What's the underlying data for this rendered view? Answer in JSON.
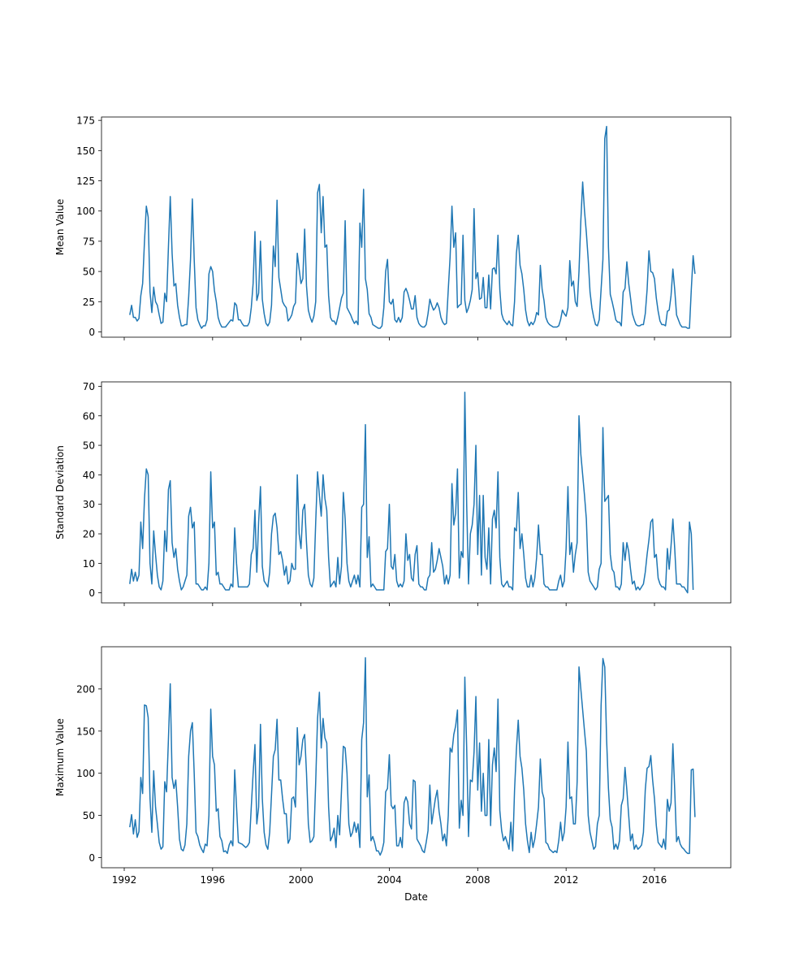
{
  "chart_data": [
    {
      "type": "line",
      "ylabel": "Mean Value",
      "xlabel": "",
      "ylim": [
        -4.4,
        177.8
      ],
      "yticks": [
        0,
        25,
        50,
        75,
        100,
        125,
        150,
        175
      ],
      "color": "#1f77b4",
      "x_range": [
        "1992-04",
        "2018-03"
      ],
      "values": [
        14,
        22,
        12,
        12,
        9,
        11,
        30,
        40,
        75,
        104,
        95,
        33,
        16,
        37,
        25,
        22,
        14,
        7,
        8,
        32,
        25,
        70,
        112,
        65,
        38,
        40,
        22,
        12,
        5,
        5,
        6,
        6,
        29,
        60,
        110,
        60,
        20,
        10,
        6,
        3,
        5,
        5,
        10,
        48,
        54,
        50,
        34,
        25,
        12,
        7,
        4,
        4,
        4,
        6,
        8,
        10,
        9,
        24,
        22,
        10,
        10,
        7,
        5,
        5,
        5,
        8,
        20,
        40,
        83,
        26,
        32,
        75,
        27,
        15,
        7,
        5,
        8,
        22,
        71,
        54,
        109,
        45,
        35,
        25,
        22,
        20,
        9,
        11,
        14,
        21,
        24,
        65,
        52,
        40,
        44,
        85,
        38,
        18,
        12,
        8,
        13,
        25,
        115,
        122,
        82,
        112,
        70,
        72,
        30,
        12,
        9,
        9,
        6,
        12,
        20,
        28,
        32,
        92,
        20,
        17,
        14,
        10,
        7,
        9,
        6,
        90,
        70,
        118,
        44,
        35,
        15,
        12,
        6,
        5,
        4,
        3,
        3,
        5,
        20,
        50,
        60,
        25,
        23,
        27,
        10,
        8,
        12,
        8,
        12,
        33,
        36,
        32,
        26,
        19,
        19,
        30,
        12,
        7,
        5,
        4,
        4,
        6,
        15,
        27,
        22,
        18,
        20,
        24,
        20,
        12,
        8,
        6,
        7,
        35,
        62,
        104,
        70,
        82,
        20,
        22,
        23,
        80,
        26,
        16,
        20,
        26,
        35,
        102,
        44,
        49,
        27,
        28,
        45,
        20,
        20,
        47,
        19,
        52,
        53,
        48,
        80,
        35,
        15,
        10,
        8,
        6,
        9,
        6,
        5,
        25,
        65,
        80,
        55,
        48,
        35,
        18,
        9,
        5,
        8,
        6,
        9,
        16,
        14,
        55,
        35,
        26,
        12,
        8,
        6,
        5,
        4,
        4,
        4,
        5,
        10,
        18,
        15,
        13,
        20,
        59,
        38,
        42,
        25,
        21,
        50,
        92,
        124,
        100,
        82,
        60,
        33,
        20,
        12,
        6,
        5,
        10,
        35,
        60,
        160,
        170,
        70,
        31,
        25,
        18,
        10,
        8,
        8,
        5,
        33,
        36,
        58,
        40,
        28,
        15,
        10,
        6,
        5,
        5,
        6,
        6,
        15,
        35,
        67,
        50,
        49,
        44,
        28,
        17,
        9,
        6,
        6,
        5,
        17,
        18,
        30,
        52,
        35,
        14,
        10,
        6,
        4,
        4,
        4,
        3,
        3,
        35,
        63,
        48
      ]
    },
    {
      "type": "line",
      "ylabel": "Standard Deviation",
      "xlabel": "",
      "ylim": [
        -3.4,
        71.5
      ],
      "yticks": [
        0,
        10,
        20,
        30,
        40,
        50,
        60,
        70
      ],
      "color": "#1f77b4",
      "x_range": [
        "1992-04",
        "2018-03"
      ],
      "values": [
        3,
        8,
        4,
        7,
        4,
        6,
        24,
        15,
        32,
        42,
        40,
        10,
        3,
        21,
        13,
        6,
        2,
        1,
        4,
        21,
        14,
        35,
        38,
        17,
        12,
        15,
        8,
        4,
        1,
        2,
        4,
        6,
        26,
        29,
        22,
        24,
        3,
        3,
        2,
        1,
        1,
        2,
        1,
        10,
        41,
        22,
        24,
        6,
        7,
        3,
        3,
        2,
        1,
        1,
        1,
        3,
        2,
        22,
        10,
        2,
        2,
        2,
        2,
        2,
        2,
        3,
        13,
        15,
        28,
        7,
        24,
        36,
        9,
        4,
        3,
        2,
        7,
        20,
        26,
        27,
        22,
        13,
        14,
        11,
        6,
        9,
        3,
        4,
        10,
        8,
        8,
        40,
        20,
        15,
        28,
        30,
        17,
        6,
        3,
        2,
        5,
        24,
        41,
        33,
        26,
        40,
        32,
        28,
        12,
        2,
        3,
        4,
        2,
        12,
        3,
        9,
        34,
        25,
        10,
        4,
        2,
        4,
        6,
        3,
        6,
        2,
        29,
        30,
        57,
        12,
        19,
        2,
        3,
        2,
        1,
        1,
        1,
        1,
        1,
        14,
        15,
        30,
        9,
        8,
        13,
        4,
        2,
        3,
        2,
        4,
        20,
        11,
        13,
        5,
        4,
        13,
        16,
        3,
        2,
        2,
        1,
        1,
        5,
        6,
        17,
        7,
        8,
        11,
        15,
        12,
        9,
        3,
        6,
        3,
        6,
        37,
        23,
        27,
        42,
        5,
        14,
        12,
        68,
        30,
        3,
        20,
        23,
        30,
        50,
        13,
        33,
        6,
        33,
        12,
        8,
        22,
        3,
        25,
        28,
        22,
        41,
        12,
        3,
        2,
        3,
        4,
        2,
        2,
        1,
        22,
        21,
        34,
        15,
        20,
        13,
        5,
        2,
        2,
        6,
        2,
        5,
        12,
        23,
        13,
        13,
        3,
        2,
        2,
        1,
        1,
        1,
        1,
        1,
        4,
        6,
        2,
        4,
        15,
        36,
        13,
        17,
        7,
        13,
        17,
        60,
        47,
        40,
        33,
        25,
        7,
        4,
        3,
        2,
        1,
        2,
        8,
        10,
        56,
        31,
        32,
        33,
        13,
        8,
        7,
        2,
        2,
        1,
        3,
        17,
        11,
        17,
        14,
        8,
        3,
        4,
        1,
        2,
        1,
        2,
        3,
        7,
        13,
        18,
        24,
        25,
        12,
        13,
        5,
        3,
        2,
        2,
        1,
        15,
        8,
        16,
        25,
        15,
        3,
        3,
        3,
        2,
        2,
        1,
        0,
        24,
        20,
        1
      ]
    },
    {
      "type": "line",
      "ylabel": "Maximum Value",
      "xlabel": "Date",
      "ylim": [
        -12,
        250
      ],
      "yticks": [
        0,
        50,
        100,
        150,
        200
      ],
      "xticks": [
        "1992",
        "1996",
        "2000",
        "2004",
        "2008",
        "2012",
        "2016"
      ],
      "color": "#1f77b4",
      "x_range": [
        "1992-04",
        "2018-03"
      ],
      "values": [
        36,
        51,
        28,
        45,
        24,
        31,
        95,
        76,
        181,
        180,
        166,
        70,
        30,
        103,
        60,
        40,
        18,
        10,
        13,
        90,
        78,
        140,
        206,
        95,
        82,
        92,
        60,
        22,
        10,
        8,
        15,
        40,
        120,
        150,
        160,
        100,
        30,
        25,
        15,
        10,
        6,
        16,
        14,
        50,
        176,
        120,
        110,
        55,
        58,
        25,
        20,
        7,
        8,
        5,
        15,
        20,
        14,
        104,
        60,
        18,
        17,
        16,
        14,
        12,
        14,
        18,
        60,
        100,
        134,
        40,
        60,
        158,
        70,
        30,
        15,
        10,
        30,
        75,
        120,
        128,
        164,
        92,
        92,
        70,
        52,
        52,
        17,
        22,
        70,
        72,
        60,
        154,
        110,
        120,
        140,
        146,
        100,
        40,
        18,
        20,
        25,
        90,
        165,
        196,
        130,
        165,
        142,
        136,
        60,
        20,
        25,
        35,
        12,
        50,
        27,
        80,
        132,
        130,
        100,
        40,
        25,
        30,
        42,
        30,
        40,
        12,
        140,
        160,
        237,
        72,
        98,
        20,
        25,
        18,
        8,
        8,
        3,
        8,
        18,
        78,
        82,
        122,
        62,
        58,
        62,
        14,
        14,
        24,
        12,
        65,
        72,
        66,
        40,
        34,
        92,
        90,
        22,
        18,
        14,
        8,
        6,
        18,
        32,
        86,
        40,
        55,
        70,
        80,
        55,
        40,
        20,
        28,
        14,
        50,
        130,
        125,
        146,
        156,
        175,
        35,
        68,
        50,
        214,
        130,
        25,
        92,
        90,
        125,
        191,
        80,
        136,
        55,
        100,
        50,
        50,
        140,
        38,
        110,
        130,
        102,
        188,
        56,
        32,
        20,
        25,
        18,
        10,
        42,
        8,
        80,
        128,
        163,
        120,
        106,
        80,
        40,
        20,
        6,
        30,
        12,
        22,
        40,
        60,
        117,
        78,
        70,
        18,
        16,
        10,
        8,
        6,
        8,
        6,
        20,
        42,
        20,
        30,
        60,
        137,
        70,
        72,
        40,
        40,
        90,
        226,
        200,
        175,
        150,
        126,
        50,
        30,
        20,
        10,
        13,
        40,
        50,
        180,
        236,
        226,
        140,
        82,
        45,
        36,
        10,
        16,
        10,
        20,
        62,
        70,
        107,
        80,
        50,
        20,
        28,
        10,
        15,
        10,
        12,
        15,
        30,
        80,
        106,
        108,
        121,
        92,
        70,
        38,
        18,
        15,
        12,
        22,
        10,
        69,
        55,
        65,
        135,
        80,
        19,
        25,
        16,
        12,
        10,
        7,
        5,
        5,
        104,
        105,
        48
      ]
    }
  ]
}
